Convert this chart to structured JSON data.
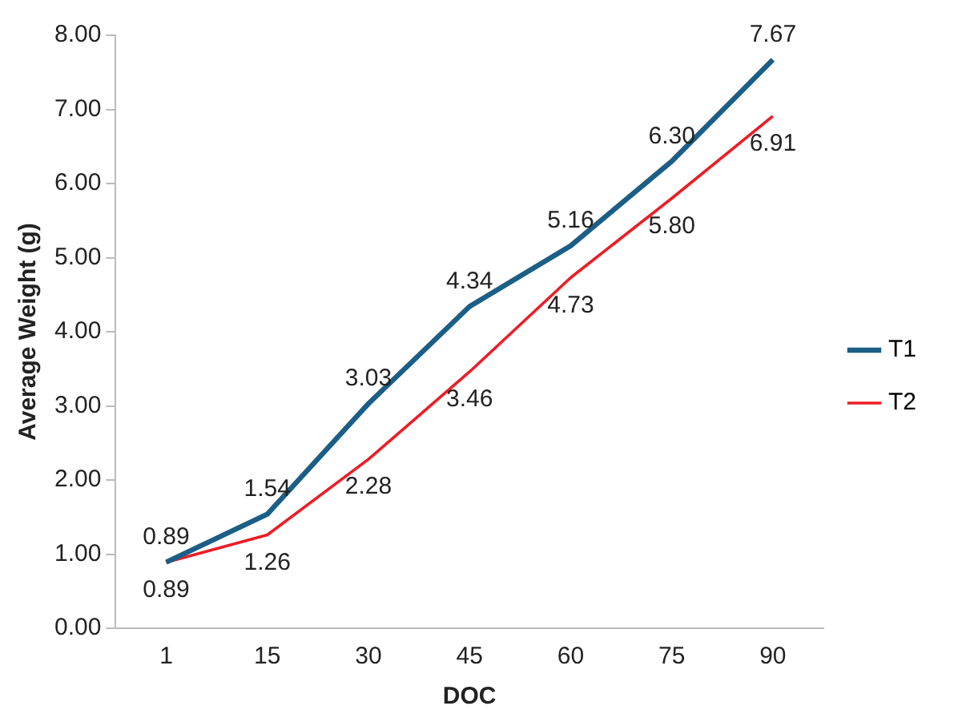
{
  "chart_data": {
    "type": "line",
    "xlabel": "DOC",
    "ylabel": "Average Weight (g)",
    "categories": [
      "1",
      "15",
      "30",
      "45",
      "60",
      "75",
      "90"
    ],
    "series": [
      {
        "name": "T1",
        "color": "#1b5e86",
        "values": [
          0.89,
          1.54,
          3.03,
          4.34,
          5.16,
          6.3,
          7.67
        ],
        "value_labels": [
          "0.89",
          "1.54",
          "3.03",
          "4.34",
          "5.16",
          "6.30",
          "7.67"
        ]
      },
      {
        "name": "T2",
        "color": "#ee1c25",
        "values": [
          0.89,
          1.26,
          2.28,
          3.46,
          4.73,
          5.8,
          6.91
        ],
        "value_labels": [
          "0.89",
          "1.26",
          "2.28",
          "3.46",
          "4.73",
          "5.80",
          "6.91"
        ]
      }
    ],
    "ylim": [
      0,
      8
    ],
    "yticks": [
      {
        "value": 0,
        "label": "0.00"
      },
      {
        "value": 1,
        "label": "1.00"
      },
      {
        "value": 2,
        "label": "2.00"
      },
      {
        "value": 3,
        "label": "3.00"
      },
      {
        "value": 4,
        "label": "4.00"
      },
      {
        "value": 5,
        "label": "5.00"
      },
      {
        "value": 6,
        "label": "6.00"
      },
      {
        "value": 7,
        "label": "7.00"
      },
      {
        "value": 8,
        "label": "8.00"
      }
    ],
    "grid": false,
    "legend": "right",
    "marker": "none",
    "line_style": "solid"
  }
}
